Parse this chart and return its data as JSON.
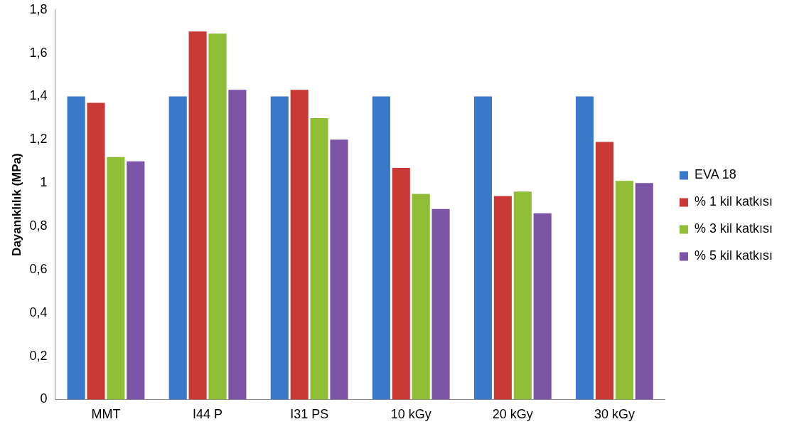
{
  "chart_data": {
    "type": "bar",
    "ylabel": "Dayanıklılık (MPa)",
    "categories": [
      "MMT",
      "I44 P",
      "I31 PS",
      "10 kGy",
      "20 kGy",
      "30 kGy"
    ],
    "series": [
      {
        "name": "EVA 18",
        "color": "#3a78c9",
        "values": [
          1.4,
          1.4,
          1.4,
          1.4,
          1.4,
          1.4
        ]
      },
      {
        "name": "% 1 kil katkısı",
        "color": "#c93a36",
        "values": [
          1.37,
          1.7,
          1.43,
          1.07,
          0.94,
          1.19
        ]
      },
      {
        "name": "% 3 kil katkısı",
        "color": "#8fbd35",
        "values": [
          1.12,
          1.69,
          1.3,
          0.95,
          0.96,
          1.01
        ]
      },
      {
        "name": "% 5 kil katkısı",
        "color": "#7b54a6",
        "values": [
          1.1,
          1.43,
          1.2,
          0.88,
          0.86,
          1.0
        ]
      }
    ],
    "ylim": [
      0,
      1.8
    ],
    "yticks": [
      0,
      {
        "value": 0.2,
        "label": "0,2"
      },
      {
        "value": 0.4,
        "label": "0,4"
      },
      {
        "value": 0.6,
        "label": "0,6"
      },
      {
        "value": 0.8,
        "label": "0,8"
      },
      1,
      {
        "value": 1.2,
        "label": "1,2"
      },
      {
        "value": 1.4,
        "label": "1,4"
      },
      {
        "value": 1.6,
        "label": "1,6"
      },
      {
        "value": 1.8,
        "label": "1,8"
      }
    ],
    "grid": false,
    "legend": "right"
  }
}
